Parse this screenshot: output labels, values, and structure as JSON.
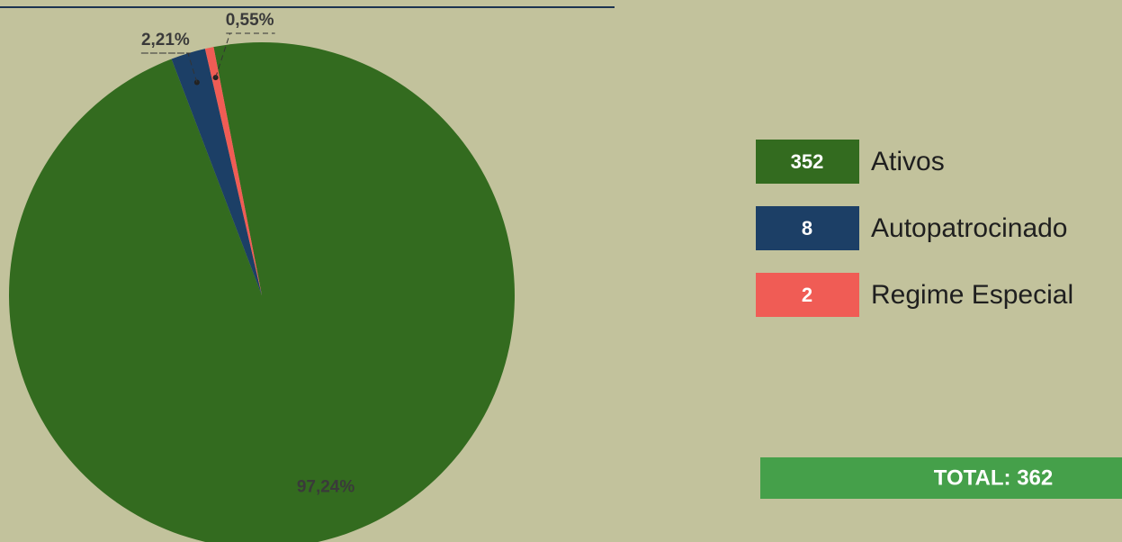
{
  "chart_data": {
    "type": "pie",
    "categories": [
      "Ativos",
      "Autopatrocinado",
      "Regime Especial"
    ],
    "values": [
      97.24,
      2.21,
      0.55
    ],
    "value_labels": [
      "97,24%",
      "2,21%",
      "0,55%"
    ],
    "colors": [
      "#336b1f",
      "#1c3f66",
      "#f05c55"
    ],
    "counts": [
      352,
      8,
      2
    ],
    "total_label": "TOTAL: 362"
  }
}
